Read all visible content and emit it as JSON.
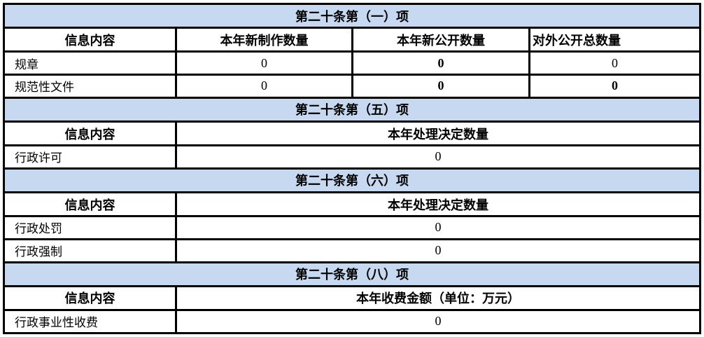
{
  "colors": {
    "section_header_bg": "#C6D9F0",
    "border": "#000000",
    "text": "#000000",
    "background": "#FFFFFF"
  },
  "sections": [
    {
      "title": "第二十条第（一）项",
      "columns": [
        "信息内容",
        "本年新制作数量",
        "本年新公开数量",
        "对外公开总数量"
      ],
      "rows": [
        {
          "label": "规章",
          "values": [
            "0",
            "0",
            "0"
          ],
          "bold": [
            false,
            true,
            false
          ]
        },
        {
          "label": "规范性文件",
          "values": [
            "0",
            "0",
            "0"
          ],
          "bold": [
            false,
            true,
            true
          ]
        }
      ]
    },
    {
      "title": "第二十条第（五）项",
      "columns": [
        "信息内容",
        "本年处理决定数量"
      ],
      "rows": [
        {
          "label": "行政许可",
          "values": [
            "0"
          ],
          "bold": [
            false
          ]
        }
      ]
    },
    {
      "title": "第二十条第（六）项",
      "columns": [
        "信息内容",
        "本年处理决定数量"
      ],
      "rows": [
        {
          "label": "行政处罚",
          "values": [
            "0"
          ],
          "bold": [
            false
          ]
        },
        {
          "label": "行政强制",
          "values": [
            "0"
          ],
          "bold": [
            false
          ]
        }
      ]
    },
    {
      "title": "第二十条第（八）项",
      "columns": [
        "信息内容",
        "本年收费金额（单位：万元）"
      ],
      "rows": [
        {
          "label": "行政事业性收费",
          "values": [
            "0"
          ],
          "bold": [
            false
          ]
        }
      ]
    }
  ]
}
